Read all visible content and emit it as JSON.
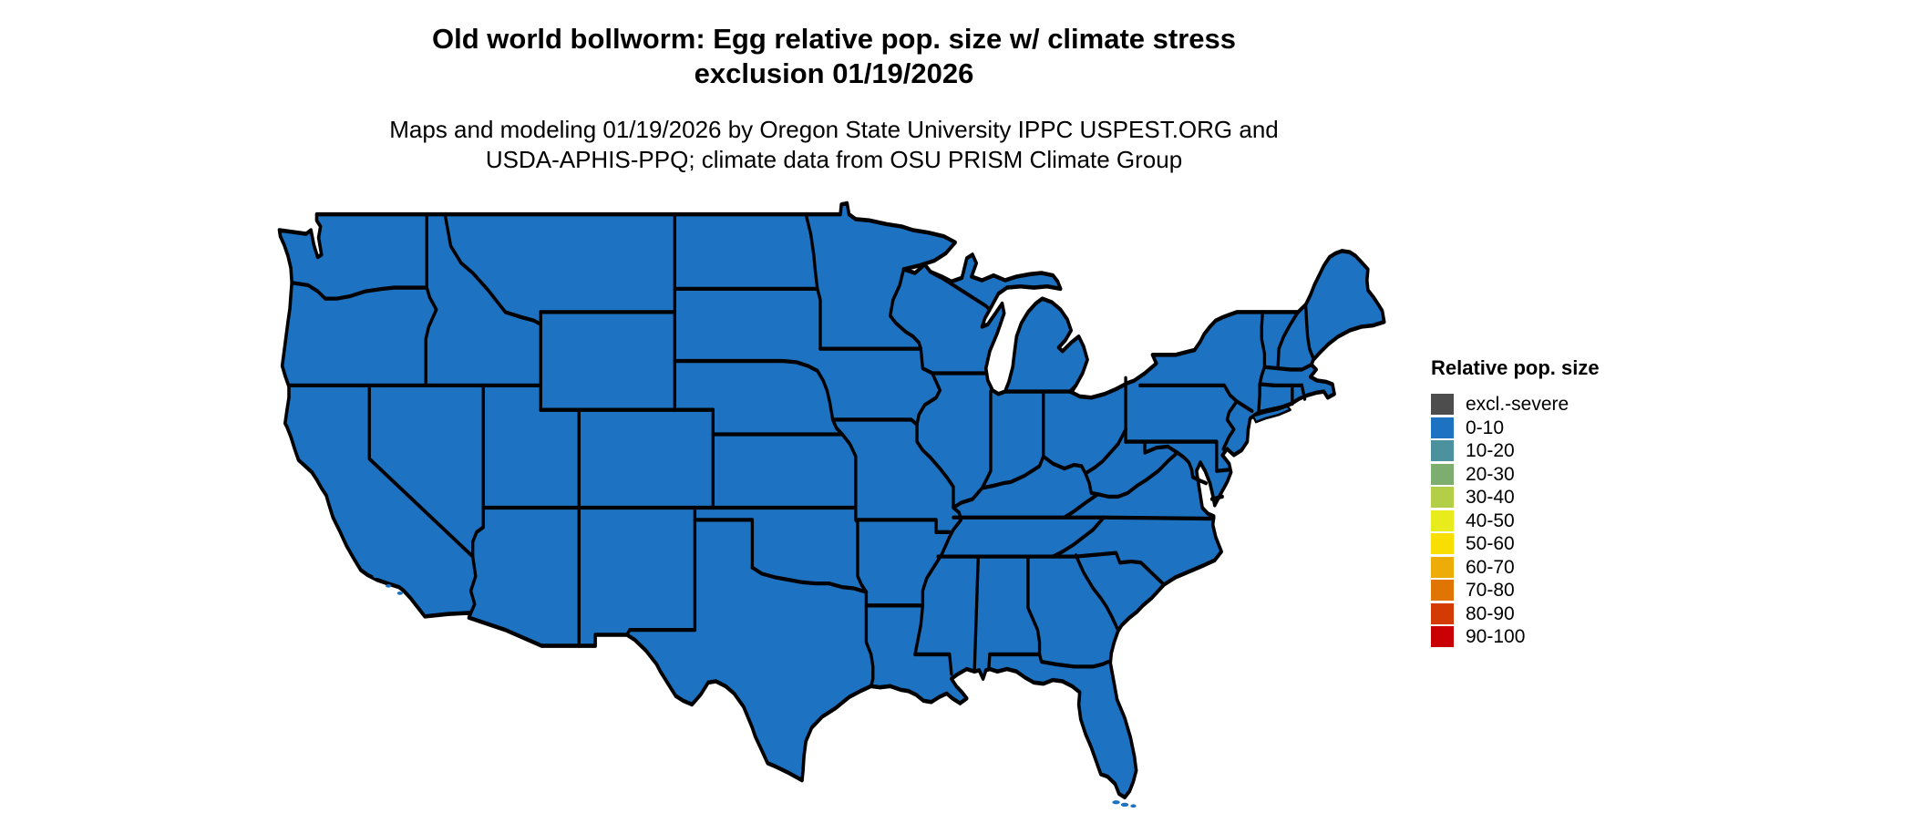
{
  "header": {
    "title_line1": "Old world bollworm: Egg relative pop. size w/ climate stress",
    "title_line2": "exclusion 01/19/2026",
    "subtitle_line1": "Maps and modeling 01/19/2026 by Oregon State University IPPC USPEST.ORG and",
    "subtitle_line2": "USDA-APHIS-PPQ; climate data from OSU PRISM Climate Group"
  },
  "map": {
    "region": "conterminous United States with state boundaries",
    "fill_color": "#1E72C2",
    "border_color": "#000000",
    "water_color": "#FFFFFF",
    "value_category_shown_for_all_states": "0-10"
  },
  "legend": {
    "title": "Relative pop. size",
    "items": [
      {
        "label": "excl.-severe",
        "color": "#4D4D4D"
      },
      {
        "label": "0-10",
        "color": "#1E72C2"
      },
      {
        "label": "10-20",
        "color": "#4B919E"
      },
      {
        "label": "20-30",
        "color": "#7DAE70"
      },
      {
        "label": "30-40",
        "color": "#B2CF47"
      },
      {
        "label": "40-50",
        "color": "#E9EC1C"
      },
      {
        "label": "50-60",
        "color": "#F9DE03"
      },
      {
        "label": "60-70",
        "color": "#EEAC08"
      },
      {
        "label": "70-80",
        "color": "#E17503"
      },
      {
        "label": "80-90",
        "color": "#D43A04"
      },
      {
        "label": "90-100",
        "color": "#C90003"
      }
    ]
  }
}
